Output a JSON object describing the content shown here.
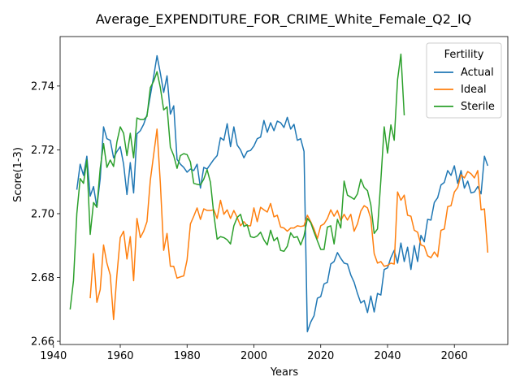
{
  "chart_data": {
    "type": "line",
    "title": "Average_EXPENDITURE_FOR_CRIME_White_Female_Q2_IQ",
    "xlabel": "Years",
    "ylabel": "Score(1-3)",
    "xlim": [
      1942,
      2076
    ],
    "ylim": [
      2.659,
      2.7555
    ],
    "xticks": [
      1940,
      1960,
      1980,
      2000,
      2020,
      2040,
      2060
    ],
    "yticks": [
      2.66,
      2.68,
      2.7,
      2.72,
      2.74
    ],
    "ytick_labels": [
      "2.66",
      "2.68",
      "2.70",
      "2.72",
      "2.74"
    ],
    "grid": false,
    "legend": {
      "title": "Fertility",
      "placement": "top-right"
    },
    "series": [
      {
        "name": "Actual",
        "color": "#1f77b4",
        "x": [
          1947,
          1948,
          1949,
          1950,
          1951,
          1952,
          1953,
          1954,
          1955,
          1956,
          1957,
          1958,
          1959,
          1960,
          1961,
          1962,
          1963,
          1964,
          1965,
          1966,
          1967,
          1968,
          1969,
          1970,
          1971,
          1972,
          1973,
          1974,
          1975,
          1976,
          1977,
          1978,
          1979,
          1980,
          1981,
          1982,
          1983,
          1984,
          1985,
          1986,
          1987,
          1988,
          1989,
          1990,
          1991,
          1992,
          1993,
          1994,
          1995,
          1996,
          1997,
          1998,
          1999,
          2000,
          2001,
          2002,
          2003,
          2004,
          2005,
          2006,
          2007,
          2008,
          2009,
          2010,
          2011,
          2012,
          2013,
          2014,
          2015,
          2016,
          2017,
          2018,
          2019,
          2020,
          2021,
          2022,
          2023,
          2024,
          2025,
          2026,
          2027,
          2028,
          2029,
          2030,
          2031,
          2032,
          2033,
          2034,
          2035,
          2036,
          2037,
          2038,
          2039,
          2040,
          2041,
          2042,
          2043,
          2044,
          2045,
          2046,
          2047,
          2048,
          2049,
          2050,
          2051,
          2052,
          2053,
          2054,
          2055,
          2056,
          2057,
          2058,
          2059,
          2060,
          2061,
          2062,
          2063,
          2064,
          2065,
          2066,
          2067,
          2068,
          2069,
          2070
        ],
        "values": [
          2.7075,
          2.7155,
          2.712,
          2.718,
          2.7055,
          2.7085,
          2.702,
          2.711,
          2.7272,
          2.7235,
          2.723,
          2.7175,
          2.7195,
          2.721,
          2.7155,
          2.706,
          2.716,
          2.7065,
          2.725,
          2.726,
          2.728,
          2.731,
          2.737,
          2.743,
          2.7495,
          2.744,
          2.738,
          2.7432,
          2.7312,
          2.7338,
          2.717,
          2.7155,
          2.7145,
          2.713,
          2.714,
          2.7135,
          2.7155,
          2.708,
          2.7145,
          2.714,
          2.7155,
          2.717,
          2.7182,
          2.7238,
          2.723,
          2.7282,
          2.721,
          2.7272,
          2.7215,
          2.72,
          2.7175,
          2.7195,
          2.7198,
          2.7212,
          2.7235,
          2.724,
          2.7292,
          2.7255,
          2.7285,
          2.726,
          2.729,
          2.7285,
          2.727,
          2.7302,
          2.7265,
          2.728,
          2.723,
          2.7235,
          2.7195,
          2.663,
          2.666,
          2.668,
          2.6735,
          2.674,
          2.678,
          2.6785,
          2.6842,
          2.685,
          2.6878,
          2.686,
          2.6845,
          2.6842,
          2.6808,
          2.6785,
          2.675,
          2.672,
          2.6728,
          2.669,
          2.6742,
          2.6692,
          2.675,
          2.6745,
          2.6825,
          2.683,
          2.6862,
          2.6885,
          2.6845,
          2.6908,
          2.685,
          2.6895,
          2.6825,
          2.69,
          2.685,
          2.6932,
          2.6912,
          2.6982,
          2.698,
          2.7035,
          2.705,
          2.709,
          2.7098,
          2.7135,
          2.712,
          2.715,
          2.7095,
          2.7135,
          2.708,
          2.7102,
          2.7065,
          2.7068,
          2.7085,
          2.7062,
          2.718,
          2.715
        ]
      },
      {
        "name": "Ideal",
        "color": "#ff7f0e",
        "x": [
          1951,
          1952,
          1953,
          1954,
          1955,
          1956,
          1957,
          1958,
          1959,
          1960,
          1961,
          1962,
          1963,
          1964,
          1965,
          1966,
          1967,
          1968,
          1969,
          1970,
          1971,
          1972,
          1973,
          1974,
          1975,
          1976,
          1977,
          1978,
          1979,
          1980,
          1981,
          1982,
          1983,
          1984,
          1985,
          1986,
          1987,
          1988,
          1989,
          1990,
          1991,
          1992,
          1993,
          1994,
          1995,
          1996,
          1997,
          1998,
          1999,
          2000,
          2001,
          2002,
          2003,
          2004,
          2005,
          2006,
          2007,
          2008,
          2009,
          2010,
          2011,
          2012,
          2013,
          2014,
          2015,
          2016,
          2017,
          2018,
          2019,
          2020,
          2021,
          2022,
          2023,
          2024,
          2025,
          2026,
          2027,
          2028,
          2029,
          2030,
          2031,
          2032,
          2033,
          2034,
          2035,
          2036,
          2037,
          2038,
          2039,
          2040,
          2041,
          2042,
          2043,
          2044,
          2045,
          2046,
          2047,
          2048,
          2049,
          2050,
          2051,
          2052,
          2053,
          2054,
          2055,
          2056,
          2057,
          2058,
          2059,
          2060,
          2061,
          2062,
          2063,
          2064,
          2065,
          2066,
          2067,
          2068,
          2069,
          2070
        ],
        "values": [
          2.6735,
          2.6875,
          2.6722,
          2.6762,
          2.6902,
          2.6845,
          2.6808,
          2.6668,
          2.6808,
          2.6925,
          2.6945,
          2.6858,
          2.6928,
          2.679,
          2.6985,
          2.6925,
          2.6945,
          2.6975,
          2.7105,
          2.7185,
          2.7265,
          2.7095,
          2.6885,
          2.6938,
          2.6835,
          2.6835,
          2.6798,
          2.6802,
          2.6805,
          2.6855,
          2.6968,
          2.6992,
          2.7018,
          2.6982,
          2.7015,
          2.701,
          2.701,
          2.7012,
          2.6985,
          2.7042,
          2.6998,
          2.7012,
          2.6985,
          2.701,
          2.6988,
          2.6962,
          2.6975,
          2.6962,
          2.6962,
          2.7018,
          2.6975,
          2.702,
          2.7012,
          2.7005,
          2.7032,
          2.699,
          2.6995,
          2.6958,
          2.6955,
          2.6945,
          2.6955,
          2.6955,
          2.6962,
          2.696,
          2.6962,
          2.6995,
          2.6975,
          2.6952,
          2.6922,
          2.6962,
          2.6968,
          2.6985,
          2.7012,
          2.6992,
          2.701,
          2.6978,
          2.6998,
          2.698,
          2.6998,
          2.6945,
          2.6968,
          2.7008,
          2.7025,
          2.7018,
          2.6985,
          2.6875,
          2.6845,
          2.685,
          2.6835,
          2.6838,
          2.6845,
          2.6842,
          2.7068,
          2.7042,
          2.7058,
          2.6995,
          2.6992,
          2.6948,
          2.6942,
          2.6902,
          2.6898,
          2.6868,
          2.6862,
          2.688,
          2.6865,
          2.6948,
          2.6952,
          2.7022,
          2.7025,
          2.7068,
          2.7082,
          2.7122,
          2.7112,
          2.7132,
          2.7125,
          2.7112,
          2.7135,
          2.7012,
          2.7015,
          2.6878
        ]
      },
      {
        "name": "Sterile",
        "color": "#2ca02c",
        "x": [
          1945,
          1946,
          1947,
          1948,
          1949,
          1950,
          1951,
          1952,
          1953,
          1954,
          1955,
          1956,
          1957,
          1958,
          1959,
          1960,
          1961,
          1962,
          1963,
          1964,
          1965,
          1966,
          1967,
          1968,
          1969,
          1970,
          1971,
          1972,
          1973,
          1974,
          1975,
          1976,
          1977,
          1978,
          1979,
          1980,
          1981,
          1982,
          1983,
          1984,
          1985,
          1986,
          1987,
          1988,
          1989,
          1990,
          1991,
          1992,
          1993,
          1994,
          1995,
          1996,
          1997,
          1998,
          1999,
          2000,
          2001,
          2002,
          2003,
          2004,
          2005,
          2006,
          2007,
          2008,
          2009,
          2010,
          2011,
          2012,
          2013,
          2014,
          2015,
          2016,
          2017,
          2018,
          2019,
          2020,
          2021,
          2022,
          2023,
          2024,
          2025,
          2026,
          2027,
          2028,
          2029,
          2030,
          2031,
          2032,
          2033,
          2034,
          2035,
          2036,
          2037,
          2038,
          2039,
          2040,
          2041,
          2042,
          2043,
          2044,
          2045
        ],
        "values": [
          2.67,
          2.679,
          2.7,
          2.711,
          2.7095,
          2.7168,
          2.6935,
          2.7035,
          2.702,
          2.7142,
          2.722,
          2.7145,
          2.7168,
          2.7148,
          2.7225,
          2.7272,
          2.7252,
          2.7182,
          2.7252,
          2.7175,
          2.73,
          2.7295,
          2.7295,
          2.7305,
          2.7395,
          2.7415,
          2.7445,
          2.7395,
          2.7325,
          2.7335,
          2.7208,
          2.7182,
          2.7142,
          2.7182,
          2.7188,
          2.7185,
          2.7162,
          2.7095,
          2.7092,
          2.709,
          2.7108,
          2.7138,
          2.7098,
          2.6998,
          2.692,
          2.6928,
          2.6925,
          2.6918,
          2.6905,
          2.6962,
          2.6988,
          2.6998,
          2.696,
          2.6965,
          2.6928,
          2.6925,
          2.693,
          2.6942,
          2.6918,
          2.6902,
          2.6948,
          2.6915,
          2.6925,
          2.6885,
          2.6882,
          2.6898,
          2.694,
          2.6925,
          2.6928,
          2.6902,
          2.693,
          2.6985,
          2.6972,
          2.6942,
          2.6915,
          2.6888,
          2.6888,
          2.6958,
          2.6962,
          2.6905,
          2.6982,
          2.6955,
          2.7102,
          2.7058,
          2.7052,
          2.7045,
          2.7062,
          2.7108,
          2.7082,
          2.7072,
          2.7028,
          2.6938,
          2.6952,
          2.7105,
          2.7272,
          2.719,
          2.7278,
          2.723,
          2.742,
          2.75,
          2.7308
        ]
      }
    ]
  }
}
